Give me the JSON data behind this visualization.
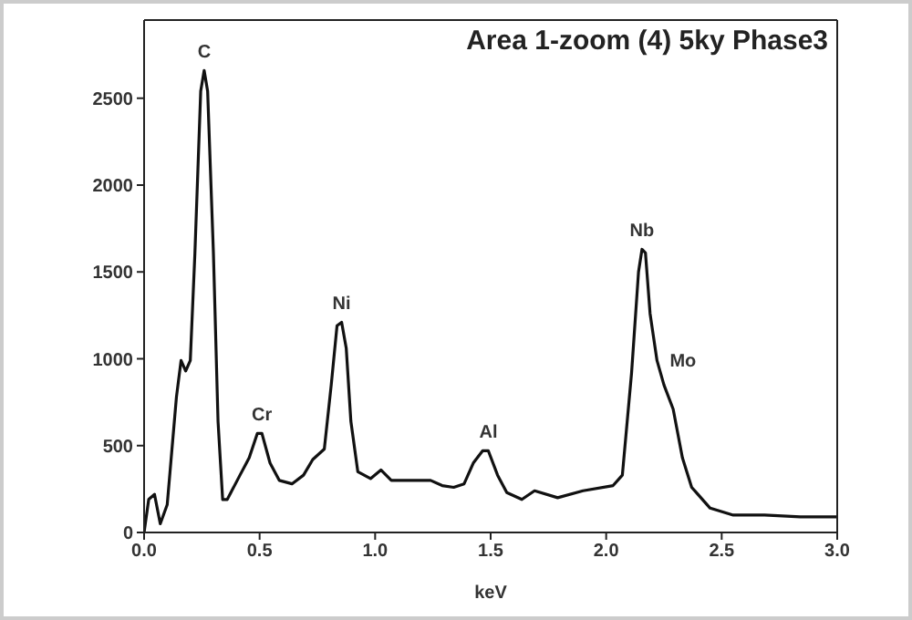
{
  "chart_data": {
    "type": "line",
    "title": "Area 1-zoom (4) 5ky Phase3",
    "xlabel": "keV",
    "x": [
      0,
      0.02,
      0.045,
      0.07,
      0.1,
      0.14,
      0.16,
      0.18,
      0.2,
      0.22,
      0.245,
      0.26,
      0.275,
      0.3,
      0.32,
      0.34,
      0.36,
      0.415,
      0.455,
      0.49,
      0.51,
      0.545,
      0.585,
      0.64,
      0.69,
      0.73,
      0.78,
      0.81,
      0.835,
      0.855,
      0.875,
      0.895,
      0.925,
      0.98,
      1.025,
      1.07,
      1.16,
      1.24,
      1.29,
      1.34,
      1.385,
      1.425,
      1.465,
      1.49,
      1.53,
      1.57,
      1.635,
      1.69,
      1.79,
      1.9,
      2.03,
      2.07,
      2.11,
      2.14,
      2.155,
      2.17,
      2.19,
      2.22,
      2.25,
      2.29,
      2.33,
      2.37,
      2.45,
      2.55,
      2.685,
      2.84,
      3.0
    ],
    "series": [
      {
        "color": "#111111",
        "values": [
          0,
          190,
          220,
          50,
          160,
          780,
          990,
          930,
          990,
          1610,
          2540,
          2660,
          2540,
          1610,
          640,
          190,
          190,
          330,
          430,
          570,
          570,
          400,
          300,
          280,
          330,
          420,
          480,
          850,
          1190,
          1210,
          1060,
          640,
          350,
          310,
          360,
          300,
          300,
          300,
          270,
          260,
          280,
          400,
          470,
          470,
          330,
          230,
          190,
          240,
          200,
          240,
          270,
          330,
          920,
          1500,
          1630,
          1610,
          1260,
          990,
          850,
          710,
          430,
          260,
          140,
          100,
          100,
          90,
          90
        ]
      }
    ],
    "xlim": [
      0,
      3
    ],
    "xticks": [
      {
        "value": 0,
        "label": "0.0"
      },
      {
        "value": 0.5,
        "label": "0.5"
      },
      {
        "value": 1,
        "label": "1.0"
      },
      {
        "value": 1.5,
        "label": "1.5"
      },
      {
        "value": 2,
        "label": "2.0"
      },
      {
        "value": 2.5,
        "label": "2.5"
      },
      {
        "value": 3,
        "label": "3.0"
      }
    ],
    "ylim": [
      0,
      2950
    ],
    "yticks": [
      0,
      500,
      1000,
      1500,
      2000,
      2500
    ],
    "annotations": [
      {
        "text": "C",
        "x": 0.26,
        "y": 2660
      },
      {
        "text": "Cr",
        "x": 0.51,
        "y": 570
      },
      {
        "text": "Ni",
        "x": 0.855,
        "y": 1210
      },
      {
        "text": "Al",
        "x": 1.49,
        "y": 470
      },
      {
        "text": "Nb",
        "x": 2.155,
        "y": 1630
      },
      {
        "text": "Mo",
        "x": 2.22,
        "y": 990
      }
    ],
    "marker": "none",
    "line_style": "solid"
  }
}
